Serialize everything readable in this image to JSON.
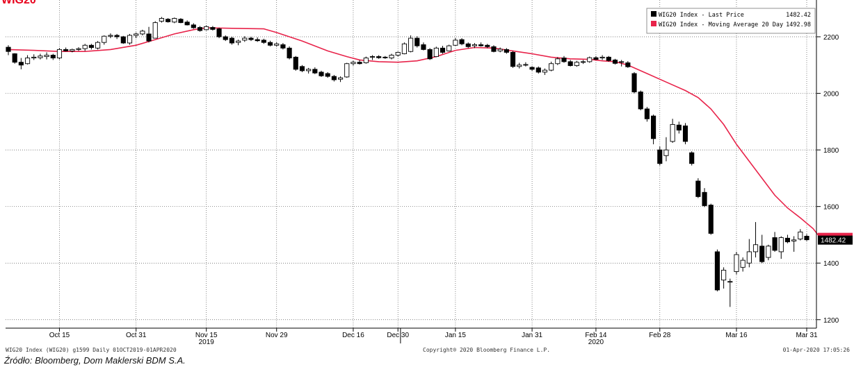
{
  "chart_data": {
    "type": "candlestick",
    "title": "WIG20",
    "ylim": [
      1170,
      2330
    ],
    "y_ticks": [
      1200,
      1400,
      1600,
      1800,
      2000,
      2200
    ],
    "y_tick_labels": [
      "1200",
      "1400",
      "1600",
      "1800",
      "2000",
      "2200"
    ],
    "x_range": [
      0,
      127
    ],
    "x_ticks": [
      {
        "x": 8,
        "label": "Oct 15",
        "year": ""
      },
      {
        "x": 20,
        "label": "Oct 31",
        "year": ""
      },
      {
        "x": 31,
        "label": "Nov 15",
        "year": "2019"
      },
      {
        "x": 42,
        "label": "Nov 29",
        "year": ""
      },
      {
        "x": 54,
        "label": "Dec 16",
        "year": ""
      },
      {
        "x": 61,
        "label": "Dec 30",
        "year": ""
      },
      {
        "x": 70,
        "label": "Jan 15",
        "year": ""
      },
      {
        "x": 82,
        "label": "Jan 31",
        "year": ""
      },
      {
        "x": 92,
        "label": "Feb 14",
        "year": "2020"
      },
      {
        "x": 102,
        "label": "Feb 28",
        "year": ""
      },
      {
        "x": 114,
        "label": "Mar 16",
        "year": ""
      },
      {
        "x": 125,
        "label": "Mar 31",
        "year": ""
      }
    ],
    "year_divider_x": 61.4,
    "last_price_label": "1482.42",
    "legend": [
      {
        "name": "WIG20 Index - Last Price",
        "value": "1482.42",
        "color": "#000000"
      },
      {
        "name": "WIG20 Index - Moving Average 20 Day",
        "value": "1492.98",
        "color": "#e8234a"
      }
    ],
    "candles": [
      {
        "o": 2163,
        "h": 2170,
        "l": 2135,
        "c": 2148
      },
      {
        "o": 2140,
        "h": 2142,
        "l": 2105,
        "c": 2110
      },
      {
        "o": 2110,
        "h": 2125,
        "l": 2085,
        "c": 2100
      },
      {
        "o": 2105,
        "h": 2135,
        "l": 2102,
        "c": 2125
      },
      {
        "o": 2125,
        "h": 2138,
        "l": 2118,
        "c": 2128
      },
      {
        "o": 2126,
        "h": 2140,
        "l": 2120,
        "c": 2132
      },
      {
        "o": 2130,
        "h": 2145,
        "l": 2120,
        "c": 2135
      },
      {
        "o": 2135,
        "h": 2140,
        "l": 2118,
        "c": 2125
      },
      {
        "o": 2125,
        "h": 2160,
        "l": 2120,
        "c": 2155
      },
      {
        "o": 2155,
        "h": 2162,
        "l": 2148,
        "c": 2150
      },
      {
        "o": 2150,
        "h": 2158,
        "l": 2145,
        "c": 2155
      },
      {
        "o": 2155,
        "h": 2163,
        "l": 2150,
        "c": 2158
      },
      {
        "o": 2158,
        "h": 2175,
        "l": 2150,
        "c": 2170
      },
      {
        "o": 2170,
        "h": 2175,
        "l": 2155,
        "c": 2162
      },
      {
        "o": 2160,
        "h": 2185,
        "l": 2155,
        "c": 2180
      },
      {
        "o": 2180,
        "h": 2205,
        "l": 2172,
        "c": 2202
      },
      {
        "o": 2202,
        "h": 2212,
        "l": 2195,
        "c": 2205
      },
      {
        "o": 2205,
        "h": 2210,
        "l": 2192,
        "c": 2200
      },
      {
        "o": 2200,
        "h": 2203,
        "l": 2175,
        "c": 2178
      },
      {
        "o": 2178,
        "h": 2210,
        "l": 2172,
        "c": 2205
      },
      {
        "o": 2205,
        "h": 2215,
        "l": 2195,
        "c": 2210
      },
      {
        "o": 2210,
        "h": 2225,
        "l": 2205,
        "c": 2220
      },
      {
        "o": 2210,
        "h": 2235,
        "l": 2180,
        "c": 2185
      },
      {
        "o": 2195,
        "h": 2255,
        "l": 2195,
        "c": 2250
      },
      {
        "o": 2255,
        "h": 2270,
        "l": 2250,
        "c": 2265
      },
      {
        "o": 2262,
        "h": 2266,
        "l": 2250,
        "c": 2253
      },
      {
        "o": 2252,
        "h": 2268,
        "l": 2248,
        "c": 2265
      },
      {
        "o": 2262,
        "h": 2266,
        "l": 2248,
        "c": 2250
      },
      {
        "o": 2252,
        "h": 2258,
        "l": 2240,
        "c": 2242
      },
      {
        "o": 2242,
        "h": 2248,
        "l": 2228,
        "c": 2232
      },
      {
        "o": 2233,
        "h": 2238,
        "l": 2218,
        "c": 2222
      },
      {
        "o": 2225,
        "h": 2240,
        "l": 2222,
        "c": 2236
      },
      {
        "o": 2233,
        "h": 2238,
        "l": 2222,
        "c": 2226
      },
      {
        "o": 2228,
        "h": 2232,
        "l": 2195,
        "c": 2200
      },
      {
        "o": 2200,
        "h": 2205,
        "l": 2185,
        "c": 2190
      },
      {
        "o": 2195,
        "h": 2200,
        "l": 2172,
        "c": 2178
      },
      {
        "o": 2180,
        "h": 2190,
        "l": 2170,
        "c": 2185
      },
      {
        "o": 2188,
        "h": 2202,
        "l": 2182,
        "c": 2195
      },
      {
        "o": 2195,
        "h": 2200,
        "l": 2185,
        "c": 2190
      },
      {
        "o": 2190,
        "h": 2198,
        "l": 2182,
        "c": 2186
      },
      {
        "o": 2188,
        "h": 2193,
        "l": 2175,
        "c": 2180
      },
      {
        "o": 2180,
        "h": 2186,
        "l": 2166,
        "c": 2170
      },
      {
        "o": 2170,
        "h": 2180,
        "l": 2165,
        "c": 2175
      },
      {
        "o": 2172,
        "h": 2178,
        "l": 2155,
        "c": 2160
      },
      {
        "o": 2160,
        "h": 2166,
        "l": 2120,
        "c": 2125
      },
      {
        "o": 2128,
        "h": 2132,
        "l": 2080,
        "c": 2085
      },
      {
        "o": 2095,
        "h": 2100,
        "l": 2075,
        "c": 2080
      },
      {
        "o": 2080,
        "h": 2090,
        "l": 2070,
        "c": 2085
      },
      {
        "o": 2085,
        "h": 2092,
        "l": 2068,
        "c": 2072
      },
      {
        "o": 2075,
        "h": 2080,
        "l": 2058,
        "c": 2062
      },
      {
        "o": 2070,
        "h": 2075,
        "l": 2055,
        "c": 2060
      },
      {
        "o": 2060,
        "h": 2065,
        "l": 2042,
        "c": 2048
      },
      {
        "o": 2050,
        "h": 2060,
        "l": 2040,
        "c": 2055
      },
      {
        "o": 2058,
        "h": 2108,
        "l": 2055,
        "c": 2105
      },
      {
        "o": 2105,
        "h": 2115,
        "l": 2098,
        "c": 2110
      },
      {
        "o": 2110,
        "h": 2118,
        "l": 2102,
        "c": 2105
      },
      {
        "o": 2108,
        "h": 2130,
        "l": 2105,
        "c": 2125
      },
      {
        "o": 2128,
        "h": 2135,
        "l": 2118,
        "c": 2130
      },
      {
        "o": 2130,
        "h": 2135,
        "l": 2122,
        "c": 2126
      },
      {
        "o": 2128,
        "h": 2132,
        "l": 2122,
        "c": 2126
      },
      {
        "o": 2125,
        "h": 2140,
        "l": 2120,
        "c": 2135
      },
      {
        "o": 2135,
        "h": 2148,
        "l": 2130,
        "c": 2145
      },
      {
        "o": 2140,
        "h": 2180,
        "l": 2138,
        "c": 2175
      },
      {
        "o": 2148,
        "h": 2205,
        "l": 2145,
        "c": 2195
      },
      {
        "o": 2195,
        "h": 2202,
        "l": 2162,
        "c": 2168
      },
      {
        "o": 2172,
        "h": 2180,
        "l": 2152,
        "c": 2155
      },
      {
        "o": 2155,
        "h": 2160,
        "l": 2118,
        "c": 2122
      },
      {
        "o": 2130,
        "h": 2165,
        "l": 2128,
        "c": 2160
      },
      {
        "o": 2160,
        "h": 2168,
        "l": 2140,
        "c": 2145
      },
      {
        "o": 2150,
        "h": 2172,
        "l": 2148,
        "c": 2168
      },
      {
        "o": 2170,
        "h": 2195,
        "l": 2168,
        "c": 2188
      },
      {
        "o": 2190,
        "h": 2195,
        "l": 2170,
        "c": 2175
      },
      {
        "o": 2175,
        "h": 2180,
        "l": 2160,
        "c": 2165
      },
      {
        "o": 2168,
        "h": 2178,
        "l": 2160,
        "c": 2172
      },
      {
        "o": 2172,
        "h": 2180,
        "l": 2165,
        "c": 2168
      },
      {
        "o": 2170,
        "h": 2175,
        "l": 2160,
        "c": 2165
      },
      {
        "o": 2165,
        "h": 2170,
        "l": 2145,
        "c": 2148
      },
      {
        "o": 2150,
        "h": 2162,
        "l": 2145,
        "c": 2156
      },
      {
        "o": 2155,
        "h": 2160,
        "l": 2140,
        "c": 2145
      },
      {
        "o": 2145,
        "h": 2150,
        "l": 2090,
        "c": 2095
      },
      {
        "o": 2095,
        "h": 2108,
        "l": 2088,
        "c": 2100
      },
      {
        "o": 2100,
        "h": 2110,
        "l": 2095,
        "c": 2102
      },
      {
        "o": 2092,
        "h": 2096,
        "l": 2080,
        "c": 2085
      },
      {
        "o": 2090,
        "h": 2095,
        "l": 2070,
        "c": 2075
      },
      {
        "o": 2075,
        "h": 2088,
        "l": 2065,
        "c": 2082
      },
      {
        "o": 2082,
        "h": 2112,
        "l": 2078,
        "c": 2105
      },
      {
        "o": 2105,
        "h": 2128,
        "l": 2100,
        "c": 2122
      },
      {
        "o": 2125,
        "h": 2132,
        "l": 2108,
        "c": 2112
      },
      {
        "o": 2112,
        "h": 2118,
        "l": 2095,
        "c": 2098
      },
      {
        "o": 2098,
        "h": 2115,
        "l": 2094,
        "c": 2110
      },
      {
        "o": 2110,
        "h": 2118,
        "l": 2104,
        "c": 2112
      },
      {
        "o": 2112,
        "h": 2130,
        "l": 2108,
        "c": 2126
      },
      {
        "o": 2126,
        "h": 2132,
        "l": 2118,
        "c": 2120
      },
      {
        "o": 2125,
        "h": 2135,
        "l": 2118,
        "c": 2128
      },
      {
        "o": 2128,
        "h": 2132,
        "l": 2112,
        "c": 2116
      },
      {
        "o": 2118,
        "h": 2122,
        "l": 2102,
        "c": 2106
      },
      {
        "o": 2110,
        "h": 2118,
        "l": 2095,
        "c": 2112
      },
      {
        "o": 2108,
        "h": 2114,
        "l": 2090,
        "c": 2094
      },
      {
        "o": 2070,
        "h": 2075,
        "l": 2000,
        "c": 2005
      },
      {
        "o": 2005,
        "h": 2010,
        "l": 1940,
        "c": 1945
      },
      {
        "o": 1945,
        "h": 1952,
        "l": 1900,
        "c": 1910
      },
      {
        "o": 1920,
        "h": 1925,
        "l": 1820,
        "c": 1840
      },
      {
        "o": 1800,
        "h": 1812,
        "l": 1745,
        "c": 1752
      },
      {
        "o": 1780,
        "h": 1845,
        "l": 1760,
        "c": 1800
      },
      {
        "o": 1830,
        "h": 1910,
        "l": 1825,
        "c": 1890
      },
      {
        "o": 1888,
        "h": 1900,
        "l": 1858,
        "c": 1870
      },
      {
        "o": 1885,
        "h": 1895,
        "l": 1820,
        "c": 1830
      },
      {
        "o": 1790,
        "h": 1795,
        "l": 1745,
        "c": 1752
      },
      {
        "o": 1690,
        "h": 1700,
        "l": 1630,
        "c": 1635
      },
      {
        "o": 1650,
        "h": 1665,
        "l": 1598,
        "c": 1603
      },
      {
        "o": 1605,
        "h": 1610,
        "l": 1500,
        "c": 1505
      },
      {
        "o": 1440,
        "h": 1448,
        "l": 1300,
        "c": 1305
      },
      {
        "o": 1340,
        "h": 1385,
        "l": 1310,
        "c": 1375
      },
      {
        "o": 1335,
        "h": 1345,
        "l": 1245,
        "c": 1335
      },
      {
        "o": 1370,
        "h": 1440,
        "l": 1360,
        "c": 1430
      },
      {
        "o": 1385,
        "h": 1420,
        "l": 1370,
        "c": 1410
      },
      {
        "o": 1400,
        "h": 1485,
        "l": 1385,
        "c": 1440
      },
      {
        "o": 1440,
        "h": 1545,
        "l": 1420,
        "c": 1465
      },
      {
        "o": 1460,
        "h": 1500,
        "l": 1400,
        "c": 1405
      },
      {
        "o": 1420,
        "h": 1465,
        "l": 1410,
        "c": 1460
      },
      {
        "o": 1490,
        "h": 1510,
        "l": 1440,
        "c": 1445
      },
      {
        "o": 1440,
        "h": 1495,
        "l": 1415,
        "c": 1490
      },
      {
        "o": 1488,
        "h": 1500,
        "l": 1470,
        "c": 1475
      },
      {
        "o": 1478,
        "h": 1495,
        "l": 1440,
        "c": 1482
      },
      {
        "o": 1485,
        "h": 1520,
        "l": 1480,
        "c": 1510
      },
      {
        "o": 1495,
        "h": 1502,
        "l": 1478,
        "c": 1482.42
      }
    ],
    "ma20": [
      [
        0,
        2155
      ],
      [
        4,
        2152
      ],
      [
        8,
        2148
      ],
      [
        12,
        2148
      ],
      [
        16,
        2155
      ],
      [
        20,
        2170
      ],
      [
        23,
        2190
      ],
      [
        26,
        2210
      ],
      [
        29,
        2225
      ],
      [
        31,
        2232
      ],
      [
        35,
        2230
      ],
      [
        40,
        2228
      ],
      [
        42,
        2215
      ],
      [
        46,
        2185
      ],
      [
        50,
        2150
      ],
      [
        53,
        2130
      ],
      [
        55,
        2118
      ],
      [
        58,
        2112
      ],
      [
        61,
        2110
      ],
      [
        64,
        2115
      ],
      [
        67,
        2130
      ],
      [
        70,
        2152
      ],
      [
        73,
        2162
      ],
      [
        76,
        2160
      ],
      [
        79,
        2150
      ],
      [
        82,
        2140
      ],
      [
        85,
        2128
      ],
      [
        88,
        2122
      ],
      [
        91,
        2120
      ],
      [
        93,
        2115
      ],
      [
        95,
        2112
      ],
      [
        97,
        2100
      ],
      [
        100,
        2070
      ],
      [
        103,
        2040
      ],
      [
        106,
        2010
      ],
      [
        108,
        1985
      ],
      [
        110,
        1945
      ],
      [
        112,
        1890
      ],
      [
        114,
        1820
      ],
      [
        116,
        1760
      ],
      [
        118,
        1700
      ],
      [
        120,
        1640
      ],
      [
        122,
        1595
      ],
      [
        124,
        1560
      ],
      [
        126,
        1522
      ],
      [
        127,
        1493
      ]
    ]
  },
  "footer": {
    "left": "WIG20 Index (WIG20) g1599  Daily 01OCT2019-01APR2020",
    "middle": "Copyright® 2020 Bloomberg Finance L.P.",
    "right": "01-Apr-2020 17:05:26"
  },
  "source": "Źródło: Bloomberg, Dom Maklerski BDM S.A."
}
